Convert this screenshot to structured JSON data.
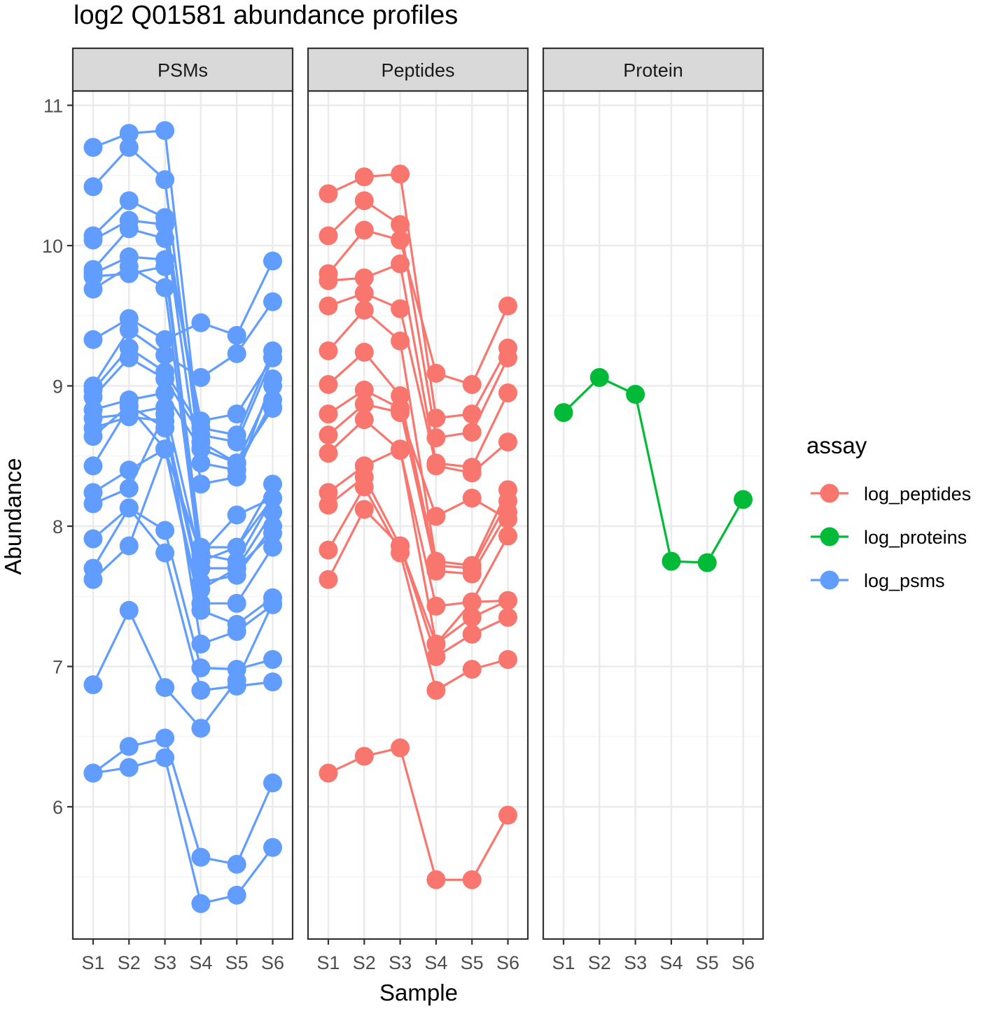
{
  "chart_data": {
    "type": "line",
    "title": "log2 Q01581 abundance profiles",
    "xlabel": "Sample",
    "ylabel": "Abundance",
    "categories": [
      "S1",
      "S2",
      "S3",
      "S4",
      "S5",
      "S6"
    ],
    "yticks": [
      6,
      7,
      8,
      9,
      10,
      11
    ],
    "ylim": [
      5.2,
      11.1
    ],
    "grid": true,
    "facets": [
      {
        "label": "PSMs",
        "assay": "log_psms",
        "series": [
          {
            "values": [
              10.7,
              10.8,
              10.82,
              8.55,
              8.45,
              8.85
            ]
          },
          {
            "values": [
              10.42,
              10.7,
              10.47,
              8.45,
              8.4,
              8.9
            ]
          },
          {
            "values": [
              10.07,
              10.32,
              10.2,
              8.6,
              8.45,
              9.0
            ]
          },
          {
            "values": [
              10.04,
              10.18,
              10.15,
              8.3,
              8.35,
              9.05
            ]
          },
          {
            "values": [
              9.83,
              10.12,
              10.05,
              8.75,
              8.8,
              9.2
            ]
          },
          {
            "values": [
              9.8,
              9.92,
              9.9,
              7.85,
              7.85,
              8.3
            ]
          },
          {
            "values": [
              9.78,
              9.8,
              9.85,
              7.8,
              7.75,
              8.2
            ]
          },
          {
            "values": [
              9.69,
              9.85,
              9.7,
              7.7,
              7.7,
              8.1
            ]
          },
          {
            "values": [
              9.33,
              9.48,
              9.33,
              9.45,
              9.36,
              9.89
            ]
          },
          {
            "values": [
              9.0,
              9.4,
              9.22,
              9.06,
              9.23,
              9.6
            ]
          },
          {
            "values": [
              8.97,
              9.27,
              9.1,
              8.7,
              8.65,
              9.25
            ]
          },
          {
            "values": [
              8.92,
              9.2,
              9.05,
              8.65,
              8.6,
              9.2
            ]
          },
          {
            "values": [
              8.83,
              8.9,
              8.95,
              8.55,
              8.45,
              8.84
            ]
          },
          {
            "values": [
              8.77,
              8.8,
              8.85,
              7.75,
              7.85,
              8.2
            ]
          },
          {
            "values": [
              8.7,
              8.78,
              8.75,
              7.6,
              7.65,
              8.0
            ]
          },
          {
            "values": [
              8.64,
              8.86,
              8.7,
              7.55,
              7.7,
              7.95
            ]
          },
          {
            "values": [
              8.43,
              8.85,
              8.55,
              7.45,
              7.45,
              7.85
            ]
          },
          {
            "values": [
              8.24,
              8.4,
              8.55,
              7.4,
              7.3,
              7.49
            ]
          },
          {
            "values": [
              8.16,
              8.27,
              8.8,
              7.16,
              7.25,
              7.44
            ]
          },
          {
            "values": [
              7.91,
              8.13,
              7.97,
              6.99,
              6.98,
              7.05
            ]
          },
          {
            "values": [
              7.7,
              8.13,
              7.81,
              6.83,
              6.86,
              6.89
            ]
          },
          {
            "values": [
              7.62,
              7.86,
              8.55,
              7.8,
              8.08,
              8.2
            ]
          },
          {
            "values": [
              6.87,
              7.4,
              6.85,
              6.56,
              6.9,
              7.45
            ]
          },
          {
            "values": [
              6.24,
              6.43,
              6.49,
              5.64,
              5.59,
              6.17
            ]
          },
          {
            "values": [
              6.24,
              6.28,
              6.35,
              5.31,
              5.37,
              5.71
            ]
          }
        ]
      },
      {
        "label": "Peptides",
        "assay": "log_peptides",
        "series": [
          {
            "values": [
              10.37,
              10.49,
              10.51,
              8.77,
              8.8,
              9.27
            ]
          },
          {
            "values": [
              10.07,
              10.32,
              10.15,
              8.63,
              8.67,
              9.2
            ]
          },
          {
            "values": [
              9.8,
              10.11,
              10.04,
              9.09,
              9.01,
              9.57
            ]
          },
          {
            "values": [
              9.75,
              9.77,
              9.87,
              8.45,
              8.42,
              8.95
            ]
          },
          {
            "values": [
              9.57,
              9.66,
              9.55,
              8.43,
              8.38,
              8.6
            ]
          },
          {
            "values": [
              9.25,
              9.54,
              9.32,
              7.75,
              7.72,
              8.26
            ]
          },
          {
            "values": [
              9.01,
              9.24,
              8.93,
              7.72,
              7.7,
              8.18
            ]
          },
          {
            "values": [
              8.8,
              8.97,
              8.84,
              7.68,
              7.66,
              8.1
            ]
          },
          {
            "values": [
              8.65,
              8.87,
              8.81,
              8.07,
              8.2,
              8.05
            ]
          },
          {
            "values": [
              8.52,
              8.76,
              8.54,
              7.43,
              7.46,
              7.93
            ]
          },
          {
            "values": [
              8.24,
              8.43,
              8.55,
              7.16,
              7.35,
              7.47
            ]
          },
          {
            "values": [
              8.15,
              8.35,
              7.86,
              7.07,
              7.23,
              7.35
            ]
          },
          {
            "values": [
              7.83,
              8.28,
              7.81,
              6.83,
              6.98,
              7.05
            ]
          },
          {
            "values": [
              7.62,
              8.12,
              7.86,
              7.16,
              7.46,
              7.47
            ]
          },
          {
            "values": [
              6.24,
              6.36,
              6.42,
              5.48,
              5.48,
              5.94
            ]
          }
        ]
      },
      {
        "label": "Protein",
        "assay": "log_proteins",
        "series": [
          {
            "values": [
              8.81,
              9.06,
              8.94,
              7.75,
              7.74,
              8.19
            ]
          }
        ]
      }
    ],
    "legend": {
      "title": "assay",
      "position": "right",
      "items": [
        {
          "label": "log_peptides",
          "color": "#F8766D"
        },
        {
          "label": "log_proteins",
          "color": "#00BA38"
        },
        {
          "label": "log_psms",
          "color": "#619CFF"
        }
      ]
    },
    "colors": {
      "log_peptides": "#F8766D",
      "log_proteins": "#00BA38",
      "log_psms": "#619CFF",
      "panel_border": "#333333",
      "strip_fill": "#D9D9D9",
      "grid_major": "#EBEBEB",
      "grid_minor": "#F5F5F5"
    }
  }
}
